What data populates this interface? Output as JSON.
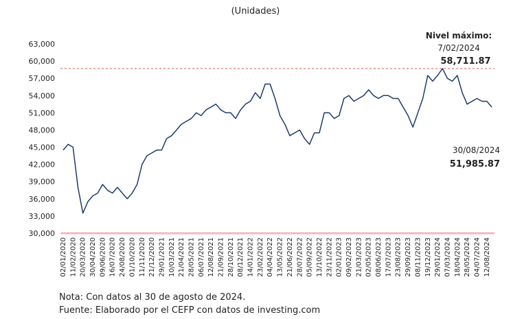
{
  "chart_data": {
    "type": "line",
    "title": "(Unidades)",
    "categories": [
      "02/01/2020",
      null,
      "11/02/2020",
      null,
      "20/03/2020",
      null,
      "30/04/2020",
      null,
      "09/06/2020",
      null,
      "16/07/2020",
      null,
      "24/08/2020",
      null,
      "01/10/2020",
      null,
      "11/11/2020",
      null,
      "21/12/2020",
      null,
      "29/01/2021",
      null,
      "10/03/2021",
      null,
      "21/04/2021",
      null,
      "28/05/2021",
      null,
      "06/07/2021",
      null,
      "12/08/2021",
      null,
      "21/09/2021",
      null,
      "28/10/2021",
      null,
      "08/12/2021",
      null,
      "14/01/2022",
      null,
      "23/02/2022",
      null,
      "04/04/2022",
      null,
      "13/05/2022",
      null,
      "21/06/2022",
      null,
      "28/07/2022",
      null,
      "05/09/2022",
      null,
      "13/10/2022",
      null,
      "23/11/2022",
      null,
      "02/01/2023",
      null,
      "09/02/2023",
      null,
      "21/03/2023",
      null,
      "02/05/2023",
      null,
      "08/06/2023",
      null,
      "17/07/2023",
      null,
      "23/08/2023",
      null,
      "29/09/2023",
      null,
      "08/11/2023",
      null,
      "19/12/2023",
      null,
      "29/01/2024",
      null,
      "07/03/2024",
      null,
      "18/04/2024",
      null,
      "28/05/2024",
      null,
      "04/07/2024",
      null,
      "12/08/2024",
      null
    ],
    "series": [
      {
        "name": "Nivel",
        "color": "#1f3a6e",
        "values": [
          44500,
          45500,
          45000,
          38000,
          33500,
          35500,
          36500,
          37000,
          38500,
          37500,
          37000,
          38000,
          37000,
          36000,
          37000,
          38500,
          42000,
          43500,
          44000,
          44500,
          44500,
          46500,
          47000,
          48000,
          49000,
          49500,
          50000,
          51000,
          50500,
          51500,
          52000,
          52500,
          51500,
          51000,
          51000,
          50000,
          51500,
          52500,
          53000,
          54500,
          53500,
          56000,
          56000,
          53500,
          50500,
          49000,
          47000,
          47500,
          48000,
          46500,
          45500,
          47500,
          47500,
          51000,
          51000,
          50000,
          50500,
          53500,
          54000,
          53000,
          53500,
          54000,
          55000,
          54000,
          53500,
          54000,
          54000,
          53500,
          53500,
          52000,
          50500,
          48500,
          51000,
          53500,
          57500,
          56500,
          57500,
          58711.87,
          57000,
          56500,
          57500,
          54500,
          52500,
          53000,
          53500,
          53000,
          53000,
          51985.87
        ]
      }
    ],
    "ylim": [
      30000,
      63000
    ],
    "yticks": [
      {
        "value": 30000,
        "label": "30,000"
      },
      {
        "value": 33000,
        "label": "33,000"
      },
      {
        "value": 36000,
        "label": "36,000"
      },
      {
        "value": 39000,
        "label": "39,000"
      },
      {
        "value": 42000,
        "label": "42,000"
      },
      {
        "value": 45000,
        "label": "45,000"
      },
      {
        "value": 48000,
        "label": "48,000"
      },
      {
        "value": 51000,
        "label": "51,000"
      },
      {
        "value": 54000,
        "label": "54,000"
      },
      {
        "value": 57000,
        "label": "57,000"
      },
      {
        "value": 60000,
        "label": "60,000"
      },
      {
        "value": 63000,
        "label": "63,000"
      }
    ],
    "max_annotation": {
      "label": "Nivel máximo:",
      "date": "7/02/2024",
      "value_label": "58,711.87",
      "value": 58711.87,
      "color": "#e05555"
    },
    "last_annotation": {
      "date": "30/08/2024",
      "value_label": "51,985.87"
    },
    "notes": [
      "Nota: Con datos al 30 de agosto de 2024.",
      "Fuente: Elaborado por el CEFP con datos de investing.com"
    ]
  }
}
